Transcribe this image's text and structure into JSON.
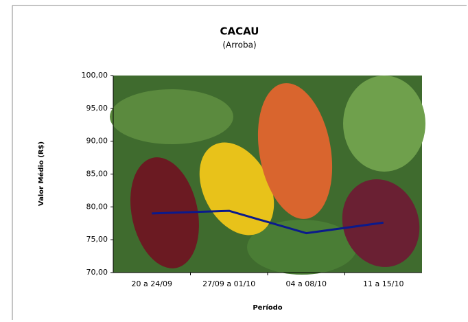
{
  "chart_data": {
    "type": "line",
    "title": "CACAU",
    "subtitle": "(Arroba)",
    "y_label": "Valor Médio (R$)",
    "x_label": "Período",
    "categories": [
      "20 a 24/09",
      "27/09 a 01/10",
      "04 a 08/10",
      "11 a 15/10"
    ],
    "values": [
      79.0,
      79.4,
      76.0,
      77.6
    ],
    "color": "#0b1a8c",
    "ylim": [
      70,
      100
    ],
    "yticks": [
      {
        "value": 70,
        "label": "70,00"
      },
      {
        "value": 75,
        "label": "75,00"
      },
      {
        "value": 80,
        "label": "80,00"
      },
      {
        "value": 85,
        "label": "85,00"
      },
      {
        "value": 90,
        "label": "90,00"
      },
      {
        "value": 95,
        "label": "95,00"
      },
      {
        "value": 100,
        "label": "100,00"
      }
    ],
    "grid": false
  }
}
